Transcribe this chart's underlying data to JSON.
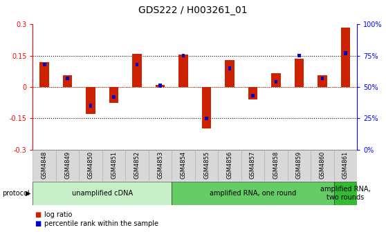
{
  "title": "GDS222 / H003261_01",
  "samples": [
    "GSM4848",
    "GSM4849",
    "GSM4850",
    "GSM4851",
    "GSM4852",
    "GSM4853",
    "GSM4854",
    "GSM4855",
    "GSM4856",
    "GSM4857",
    "GSM4858",
    "GSM4859",
    "GSM4860",
    "GSM4861"
  ],
  "log_ratio": [
    0.12,
    0.055,
    -0.13,
    -0.075,
    0.16,
    0.01,
    0.155,
    -0.2,
    0.13,
    -0.06,
    0.065,
    0.135,
    0.055,
    0.285
  ],
  "percentile": [
    68,
    57,
    35,
    42,
    68,
    51,
    75,
    25,
    65,
    43,
    54,
    75,
    57,
    77
  ],
  "protocol_groups": [
    {
      "label": "unamplified cDNA",
      "start": 0,
      "end": 5,
      "color": "#c8f0c8"
    },
    {
      "label": "amplified RNA, one round",
      "start": 6,
      "end": 12,
      "color": "#66cc66"
    },
    {
      "label": "amplified RNA,\ntwo rounds",
      "start": 13,
      "end": 13,
      "color": "#33bb33"
    }
  ],
  "ylim_left": [
    -0.3,
    0.3
  ],
  "ylim_right": [
    0,
    100
  ],
  "left_ticks": [
    -0.3,
    -0.15,
    0.0,
    0.15,
    0.3
  ],
  "right_ticks": [
    0,
    25,
    50,
    75,
    100
  ],
  "right_tick_labels": [
    "0%",
    "25%",
    "50%",
    "75%",
    "100%"
  ],
  "hlines": [
    -0.15,
    0.15
  ],
  "bar_color": "#cc2200",
  "blue_color": "#0000cc",
  "legend_log_ratio": "log ratio",
  "legend_percentile": "percentile rank within the sample",
  "protocol_label": "protocol",
  "background_color": "#ffffff",
  "title_fontsize": 10,
  "tick_fontsize": 7,
  "sample_label_fontsize": 6,
  "proto_fontsize": 7
}
